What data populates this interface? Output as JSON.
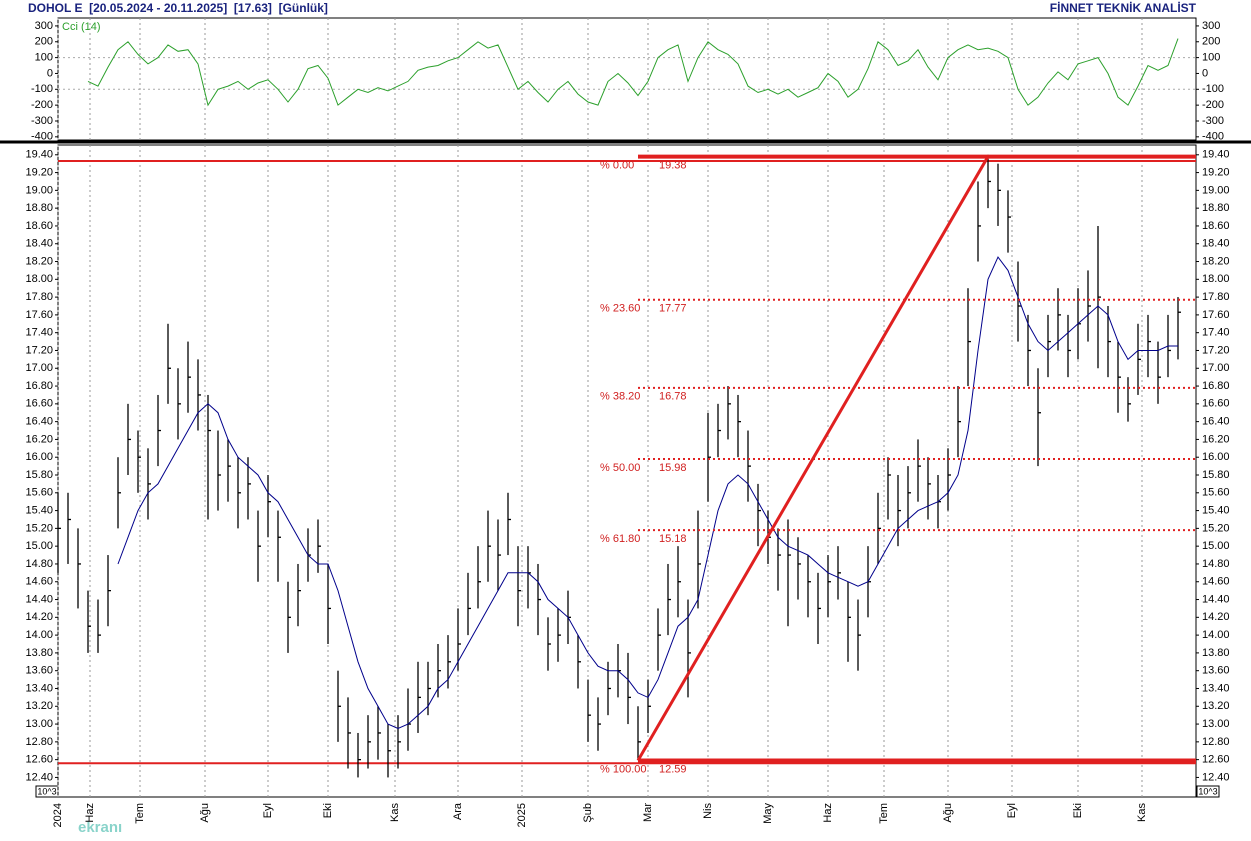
{
  "header": {
    "title": "DOHOL E  [20.05.2024 - 20.11.2025]  [17.63]  [Günlük]",
    "brand": "FİNNET TEKNİK ANALİST",
    "watermark": "ekranı"
  },
  "chart_data": [
    {
      "type": "line",
      "title": "Cci (14)",
      "color": "#2ca02c",
      "ylim": [
        -420,
        350
      ],
      "yticks": [
        300,
        200,
        100,
        0,
        -100,
        -200,
        -300,
        -400
      ],
      "xlim": [
        0,
        113.8
      ],
      "values": [
        null,
        null,
        null,
        -50,
        -80,
        40,
        150,
        200,
        120,
        60,
        100,
        180,
        140,
        150,
        60,
        -200,
        -100,
        -80,
        -50,
        -100,
        -60,
        -40,
        -100,
        -180,
        -100,
        30,
        50,
        -30,
        -200,
        -150,
        -100,
        -120,
        -90,
        -110,
        -80,
        -50,
        20,
        40,
        50,
        80,
        100,
        150,
        200,
        160,
        180,
        40,
        -100,
        -50,
        -120,
        -180,
        -100,
        -50,
        -130,
        -180,
        -200,
        -50,
        0,
        -60,
        -140,
        -50,
        100,
        150,
        180,
        -50,
        100,
        200,
        150,
        120,
        60,
        -80,
        -120,
        -100,
        -130,
        -100,
        -150,
        -120,
        -90,
        0,
        -50,
        -150,
        -100,
        30,
        200,
        150,
        50,
        80,
        150,
        40,
        -40,
        100,
        150,
        180,
        150,
        160,
        140,
        100,
        -100,
        -200,
        -150,
        -60,
        10,
        -40,
        60,
        80,
        100,
        0,
        -150,
        -200,
        -80,
        50,
        20,
        50,
        220
      ]
    },
    {
      "type": "ohlc",
      "color": "#000000",
      "grid": true,
      "scale_label": "10^3",
      "ylim": [
        12.18,
        19.51
      ],
      "xlim": [
        0,
        113.8
      ],
      "yticks": [
        {
          "value": 19.4,
          "label": "19.40"
        },
        {
          "value": 19.2,
          "label": "19.20"
        },
        {
          "value": 19.0,
          "label": "19.00"
        },
        {
          "value": 18.8,
          "label": "18.80"
        },
        {
          "value": 18.6,
          "label": "18.60"
        },
        {
          "value": 18.4,
          "label": "18.40"
        },
        {
          "value": 18.2,
          "label": "18.20"
        },
        {
          "value": 18.0,
          "label": "18.00"
        },
        {
          "value": 17.8,
          "label": "17.80"
        },
        {
          "value": 17.6,
          "label": "17.60"
        },
        {
          "value": 17.4,
          "label": "17.40"
        },
        {
          "value": 17.2,
          "label": "17.20"
        },
        {
          "value": 17.0,
          "label": "17.00"
        },
        {
          "value": 16.8,
          "label": "16.80"
        },
        {
          "value": 16.6,
          "label": "16.60"
        },
        {
          "value": 16.4,
          "label": "16.40"
        },
        {
          "value": 16.2,
          "label": "16.20"
        },
        {
          "value": 16.0,
          "label": "16.00"
        },
        {
          "value": 15.8,
          "label": "15.80"
        },
        {
          "value": 15.6,
          "label": "15.60"
        },
        {
          "value": 15.4,
          "label": "15.40"
        },
        {
          "value": 15.2,
          "label": "15.20"
        },
        {
          "value": 15.0,
          "label": "15.00"
        },
        {
          "value": 14.8,
          "label": "14.80"
        },
        {
          "value": 14.6,
          "label": "14.60"
        },
        {
          "value": 14.4,
          "label": "14.40"
        },
        {
          "value": 14.2,
          "label": "14.20"
        },
        {
          "value": 14.0,
          "label": "14.00"
        },
        {
          "value": 13.8,
          "label": "13.80"
        },
        {
          "value": 13.6,
          "label": "13.60"
        },
        {
          "value": 13.4,
          "label": "13.40"
        },
        {
          "value": 13.2,
          "label": "13.20"
        },
        {
          "value": 13.0,
          "label": "13.00"
        },
        {
          "value": 12.8,
          "label": "12.80"
        },
        {
          "value": 12.6,
          "label": "12.60"
        },
        {
          "value": 12.4,
          "label": "12.40"
        }
      ],
      "xticks": [
        {
          "value": 0,
          "label": "2024"
        },
        {
          "value": 3.2,
          "label": "Haz"
        },
        {
          "value": 8.2,
          "label": "Tem"
        },
        {
          "value": 14.7,
          "label": "Ağu"
        },
        {
          "value": 21,
          "label": "Eyl"
        },
        {
          "value": 27,
          "label": "Eki"
        },
        {
          "value": 33.7,
          "label": "Kas"
        },
        {
          "value": 40,
          "label": "Ara"
        },
        {
          "value": 46.4,
          "label": "2025"
        },
        {
          "value": 53,
          "label": "Şub"
        },
        {
          "value": 59,
          "label": "Mar"
        },
        {
          "value": 65,
          "label": "Nis"
        },
        {
          "value": 71,
          "label": "May"
        },
        {
          "value": 77,
          "label": "Haz"
        },
        {
          "value": 82.6,
          "label": "Tem"
        },
        {
          "value": 89,
          "label": "Ağu"
        },
        {
          "value": 95.4,
          "label": "Eyl"
        },
        {
          "value": 102,
          "label": "Eki"
        },
        {
          "value": 108.4,
          "label": "Kas"
        }
      ],
      "high": [
        15.6,
        15.6,
        15.2,
        14.5,
        14.4,
        14.9,
        16.0,
        16.6,
        16.3,
        16.1,
        16.7,
        17.5,
        17.0,
        17.3,
        17.1,
        16.7,
        16.3,
        16.2,
        16.0,
        16.0,
        15.4,
        15.8,
        15.4,
        14.6,
        14.8,
        15.2,
        15.3,
        14.8,
        13.6,
        13.3,
        12.9,
        13.1,
        13.2,
        13.0,
        13.1,
        13.4,
        13.7,
        13.7,
        13.9,
        14.0,
        14.3,
        14.7,
        15.0,
        15.4,
        15.3,
        15.6,
        15.0,
        15.0,
        14.8,
        14.2,
        14.3,
        14.5,
        14.0,
        13.5,
        13.3,
        13.7,
        13.9,
        13.8,
        13.2,
        13.5,
        14.3,
        14.8,
        15.0,
        14.4,
        15.4,
        16.5,
        16.6,
        16.8,
        16.7,
        16.3,
        15.7,
        15.4,
        15.2,
        15.3,
        15.1,
        14.9,
        14.7,
        14.9,
        15.0,
        14.6,
        14.4,
        15.0,
        15.6,
        16.0,
        15.8,
        15.9,
        16.2,
        16.0,
        15.8,
        16.1,
        16.8,
        17.9,
        19.1,
        19.4,
        19.3,
        19.0,
        18.2,
        17.6,
        17.0,
        17.6,
        17.9,
        17.6,
        17.9,
        18.1,
        18.6,
        17.7,
        17.3,
        16.9,
        17.5,
        17.6,
        17.3,
        17.6,
        17.8
      ],
      "low": [
        14.7,
        14.8,
        14.3,
        13.8,
        13.8,
        14.1,
        15.2,
        15.8,
        15.6,
        15.3,
        15.9,
        16.6,
        16.2,
        16.5,
        16.3,
        15.3,
        15.4,
        15.5,
        15.2,
        15.3,
        14.6,
        15.1,
        14.6,
        13.8,
        14.1,
        14.6,
        14.7,
        13.9,
        12.8,
        12.5,
        12.4,
        12.5,
        12.6,
        12.4,
        12.5,
        12.7,
        12.9,
        13.1,
        13.3,
        13.4,
        13.6,
        14.0,
        14.3,
        14.6,
        14.5,
        14.9,
        14.1,
        14.3,
        14.0,
        13.6,
        13.7,
        13.9,
        13.4,
        12.8,
        12.7,
        13.1,
        13.3,
        13.0,
        12.6,
        12.9,
        13.6,
        14.0,
        14.2,
        13.3,
        14.3,
        15.5,
        16.0,
        16.2,
        16.0,
        15.5,
        15.0,
        14.8,
        14.5,
        14.1,
        14.4,
        14.2,
        13.9,
        14.2,
        14.4,
        13.7,
        13.6,
        14.2,
        14.8,
        15.3,
        15.0,
        15.2,
        15.5,
        15.3,
        15.2,
        15.4,
        16.0,
        16.8,
        18.2,
        18.8,
        18.6,
        18.3,
        17.3,
        16.8,
        15.9,
        16.9,
        17.2,
        16.9,
        17.1,
        17.3,
        17.0,
        16.9,
        16.5,
        16.4,
        16.7,
        16.9,
        16.6,
        16.9,
        17.1
      ],
      "close": [
        15.2,
        15.3,
        14.8,
        14.1,
        14.0,
        14.5,
        15.6,
        16.2,
        16.0,
        15.7,
        16.3,
        17.0,
        16.6,
        16.9,
        16.7,
        16.3,
        15.8,
        15.9,
        15.6,
        15.7,
        15.0,
        15.5,
        15.1,
        14.2,
        14.5,
        14.9,
        15.0,
        14.3,
        13.2,
        12.9,
        12.6,
        12.8,
        12.9,
        12.7,
        12.8,
        13.0,
        13.3,
        13.4,
        13.6,
        13.7,
        13.9,
        14.3,
        14.6,
        15.0,
        14.9,
        15.3,
        14.5,
        14.7,
        14.4,
        13.9,
        14.0,
        14.2,
        13.7,
        13.1,
        13.0,
        13.4,
        13.6,
        13.3,
        12.8,
        13.2,
        14.0,
        14.4,
        14.6,
        13.8,
        14.8,
        16.0,
        16.3,
        16.6,
        16.4,
        15.9,
        15.4,
        15.1,
        14.9,
        14.9,
        14.8,
        14.6,
        14.3,
        14.6,
        14.7,
        14.2,
        14.0,
        14.6,
        15.2,
        15.8,
        15.4,
        15.6,
        15.9,
        15.7,
        15.5,
        15.8,
        16.4,
        17.3,
        18.6,
        19.1,
        19.0,
        18.7,
        17.7,
        17.2,
        16.5,
        17.3,
        17.6,
        17.2,
        17.5,
        17.7,
        17.8,
        17.3,
        16.9,
        16.6,
        17.1,
        17.3,
        16.9,
        17.2,
        17.63
      ],
      "ma": {
        "color": "#00008b",
        "values": [
          null,
          null,
          null,
          null,
          null,
          null,
          14.8,
          15.1,
          15.4,
          15.6,
          15.7,
          15.9,
          16.1,
          16.3,
          16.5,
          16.6,
          16.5,
          16.2,
          16.0,
          15.9,
          15.8,
          15.6,
          15.5,
          15.3,
          15.1,
          14.9,
          14.8,
          14.8,
          14.5,
          14.1,
          13.7,
          13.4,
          13.2,
          13.0,
          12.95,
          13.0,
          13.1,
          13.2,
          13.4,
          13.5,
          13.7,
          13.9,
          14.1,
          14.3,
          14.5,
          14.7,
          14.7,
          14.7,
          14.6,
          14.4,
          14.3,
          14.2,
          14.0,
          13.8,
          13.65,
          13.6,
          13.6,
          13.5,
          13.35,
          13.3,
          13.5,
          13.8,
          14.1,
          14.2,
          14.4,
          14.9,
          15.4,
          15.7,
          15.8,
          15.7,
          15.5,
          15.3,
          15.1,
          15.0,
          14.95,
          14.9,
          14.8,
          14.7,
          14.65,
          14.6,
          14.55,
          14.6,
          14.8,
          15.0,
          15.2,
          15.3,
          15.4,
          15.45,
          15.5,
          15.6,
          15.8,
          16.3,
          17.2,
          18.0,
          18.25,
          18.1,
          17.8,
          17.5,
          17.3,
          17.2,
          17.3,
          17.4,
          17.5,
          17.6,
          17.7,
          17.6,
          17.3,
          17.1,
          17.2,
          17.2,
          17.2,
          17.25,
          17.25
        ]
      },
      "fib_color": "#e02020",
      "fibonacci": [
        {
          "label": "% 0.00",
          "value": 19.38
        },
        {
          "label": "% 23.60",
          "value": 17.77
        },
        {
          "label": "% 38.20",
          "value": 16.78
        },
        {
          "label": "% 50.00",
          "value": 15.98
        },
        {
          "label": "% 61.80",
          "value": 15.18
        },
        {
          "label": "% 100.00",
          "value": 12.59
        }
      ],
      "hlines": [
        19.33,
        12.56
      ]
    }
  ]
}
